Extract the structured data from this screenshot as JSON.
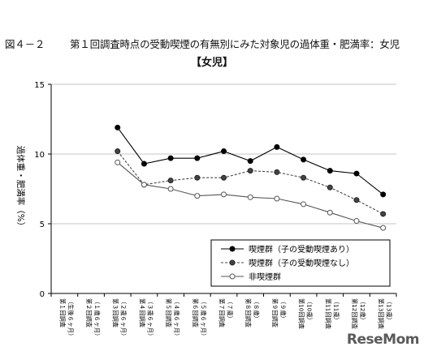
{
  "figure_number": "図４－２",
  "title_main": "第１回調査時点の受動喫煙の有無別にみた対象児の過体重・肥満率：女児",
  "subtitle": "【女児】",
  "watermark": "ReseMom",
  "chart_data": {
    "type": "line",
    "ylabel": "過体重・肥満率（%）",
    "ylim": [
      0,
      15
    ],
    "yticks": [
      0,
      5,
      10,
      15
    ],
    "grid": true,
    "legend_position": "bottom-right",
    "categories": [
      {
        "line1": "第１回調査",
        "line2": "（生後６ヶ月）"
      },
      {
        "line1": "第２回調査",
        "line2": "（１歳６ヶ月）"
      },
      {
        "line1": "第３回調査",
        "line2": "（２歳６ヶ月）"
      },
      {
        "line1": "第４回調査",
        "line2": "（３歳６ヶ月）"
      },
      {
        "line1": "第５回調査",
        "line2": "（４歳６ヶ月）"
      },
      {
        "line1": "第６回調査",
        "line2": "（５歳６ヶ月）"
      },
      {
        "line1": "第７回調査",
        "line2": "（７歳）"
      },
      {
        "line1": "第８回調査",
        "line2": "（８歳）"
      },
      {
        "line1": "第９回調査",
        "line2": "（９歳）"
      },
      {
        "line1": "第10回調査",
        "line2": "（10歳）"
      },
      {
        "line1": "第11回調査",
        "line2": "（11歳）"
      },
      {
        "line1": "第12回調査",
        "line2": "（12歳）"
      },
      {
        "line1": "第13回調査",
        "line2": "（13歳）"
      }
    ],
    "series": [
      {
        "name": "喫煙群（子の受動喫煙あり）",
        "style": "solid",
        "marker": "filled",
        "color": "#000000",
        "values": [
          null,
          null,
          11.9,
          9.3,
          9.7,
          9.7,
          10.2,
          9.5,
          10.5,
          9.6,
          8.8,
          8.6,
          7.1
        ]
      },
      {
        "name": "喫煙群（子の受動喫煙なし）",
        "style": "dashed",
        "marker": "gray",
        "color": "#444444",
        "values": [
          null,
          null,
          10.2,
          7.8,
          8.1,
          8.3,
          8.3,
          8.8,
          8.7,
          8.3,
          7.6,
          6.7,
          5.7
        ]
      },
      {
        "name": "非喫煙群",
        "style": "solid",
        "marker": "open",
        "color": "#555555",
        "values": [
          null,
          null,
          9.4,
          7.8,
          7.5,
          7.0,
          7.1,
          6.9,
          6.8,
          6.4,
          5.8,
          5.2,
          4.7
        ]
      }
    ]
  }
}
